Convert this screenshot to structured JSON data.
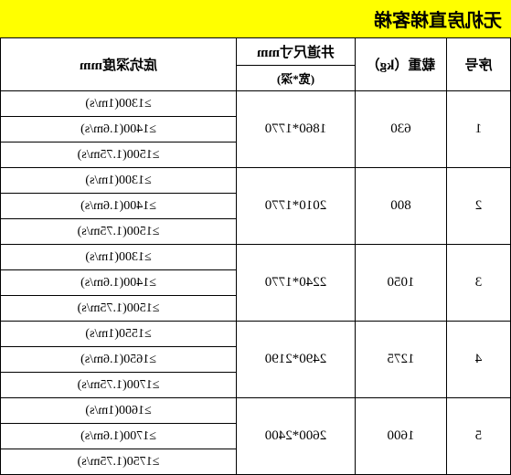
{
  "title": "无机房直梯客梯",
  "headers": {
    "seq": "序号",
    "load": "载重（kg）",
    "shaft_main": "井道尺寸mm",
    "shaft_sub": "(宽*深)",
    "pit": "底坑深度mm"
  },
  "rows": [
    {
      "seq": "1",
      "load": "630",
      "shaft": "1860*1770",
      "pits": [
        "≥1300(1m/s)",
        "≥1400(1.6m/s)",
        "≥1500(1.75m/s)"
      ]
    },
    {
      "seq": "2",
      "load": "800",
      "shaft": "2010*1770",
      "pits": [
        "≥1300(1m/s)",
        "≥1400(1.6m/s)",
        "≥1500(1.75m/s)"
      ]
    },
    {
      "seq": "3",
      "load": "1050",
      "shaft": "2240*1770",
      "pits": [
        "≥1300(1m/s)",
        "≥1400(1.6m/s)",
        "≥1500(1.75m/s)"
      ]
    },
    {
      "seq": "4",
      "load": "1275",
      "shaft": "2490*2190",
      "pits": [
        "≥1550(1m/s)",
        "≥1650(1.6m/s)",
        "≥1700(1.75m/s)"
      ]
    },
    {
      "seq": "5",
      "load": "1600",
      "shaft": "2600*2400",
      "pits": [
        "≥1600(1m/s)",
        "≥1700(1.6m/s)",
        "≥1750(1.75m/s)"
      ]
    }
  ],
  "colors": {
    "title_bg": "#ffff00",
    "border": "#000000",
    "text": "#000000",
    "bg": "#ffffff"
  }
}
